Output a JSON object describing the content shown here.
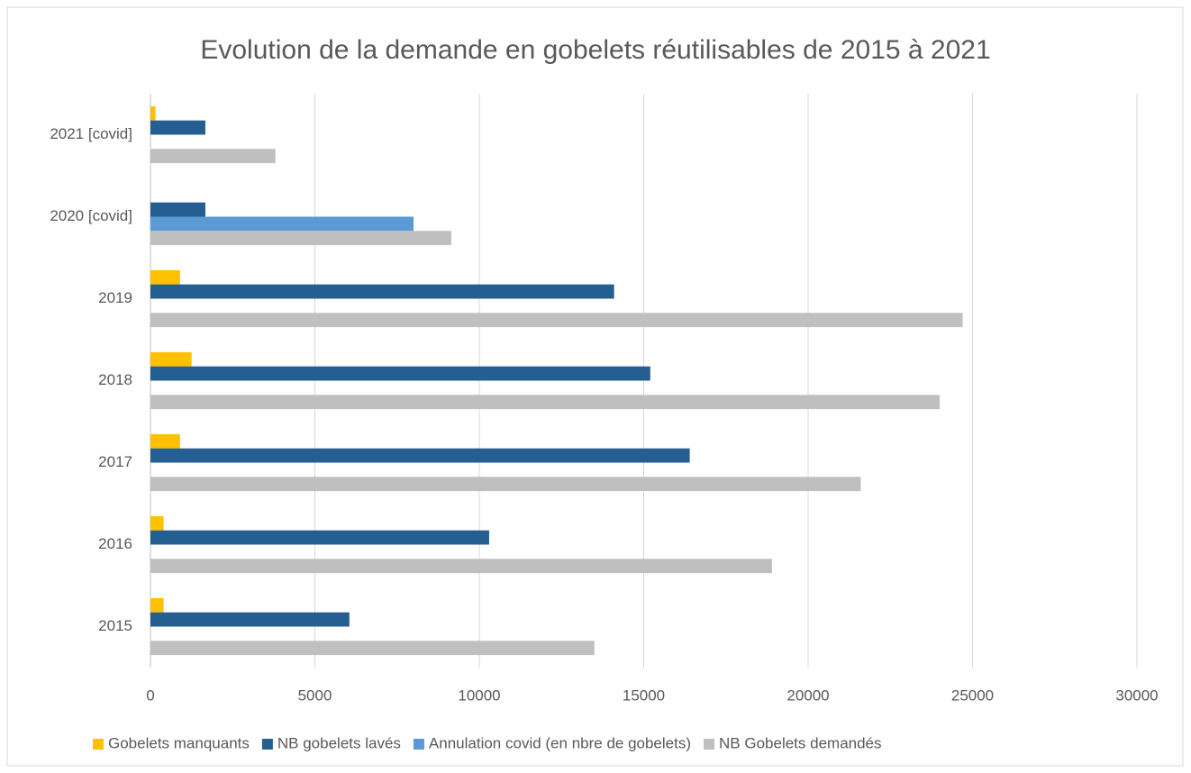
{
  "chart_data": {
    "type": "hbar",
    "title": "Evolution de la demande en gobelets réutilisables de 2015 à 2021",
    "categories": [
      "2015",
      "2016",
      "2017",
      "2018",
      "2019",
      "2020 [covid]",
      "2021 [covid]"
    ],
    "series": [
      {
        "name": "Gobelets manquants",
        "color": "#ffc000",
        "values": [
          400,
          400,
          900,
          1250,
          900,
          null,
          150
        ]
      },
      {
        "name": "NB gobelets lavés",
        "color": "#255e91",
        "values": [
          6050,
          10300,
          16400,
          15200,
          14100,
          1670,
          1670
        ]
      },
      {
        "name": "Annulation covid (en nbre de gobelets)",
        "color": "#5b9bd5",
        "values": [
          null,
          null,
          null,
          null,
          null,
          8000,
          null
        ]
      },
      {
        "name": "NB Gobelets demandés",
        "color": "#bfbfbf",
        "values": [
          13500,
          18900,
          21600,
          24000,
          24700,
          9150,
          3800
        ]
      }
    ],
    "xlim": [
      0,
      30000
    ],
    "xticks": [
      0,
      5000,
      10000,
      15000,
      20000,
      25000,
      30000
    ],
    "grid": true,
    "legend": "bottom"
  }
}
